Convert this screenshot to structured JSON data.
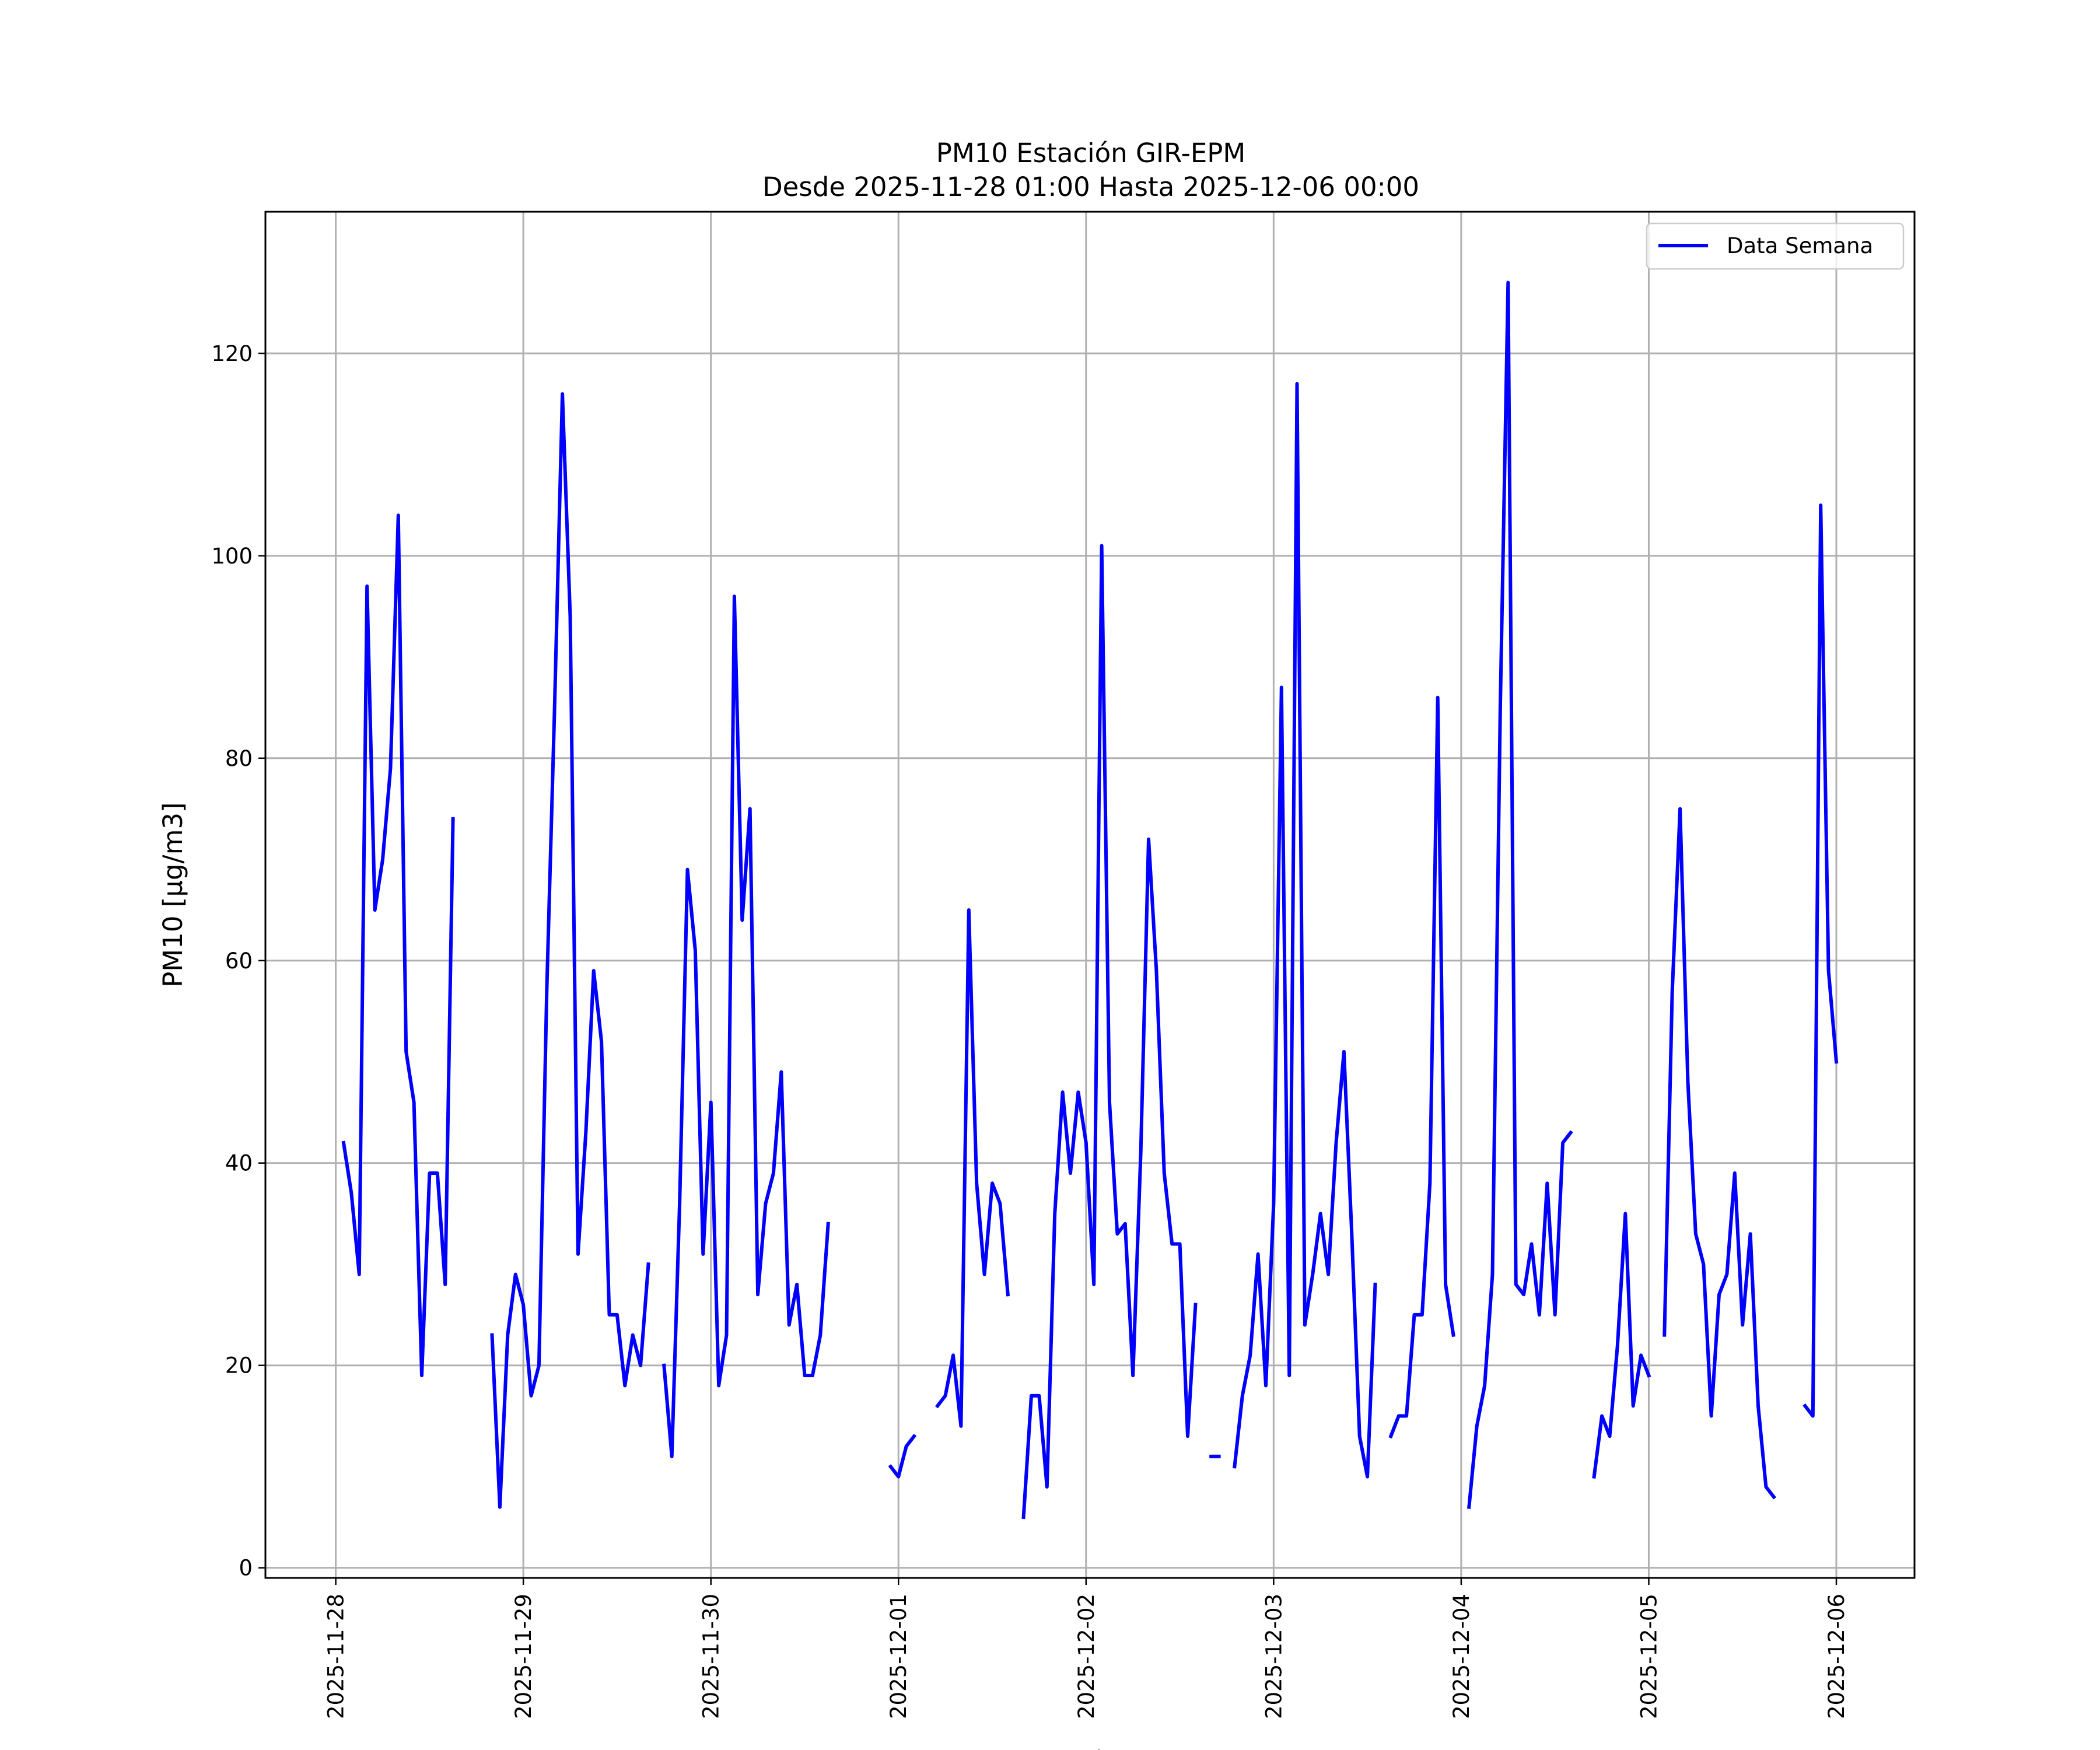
{
  "chart_data": {
    "type": "line",
    "title": "PM10 Estación GIR-EPM",
    "subtitle": "Desde 2025-11-28 01:00 Hasta 2025-12-06 00:00",
    "xlabel": "Fecha",
    "ylabel": "PM10 [μg/m3]",
    "ylim": [
      -1,
      134
    ],
    "xlim": [
      "2025-11-27 15:00",
      "2025-12-06 10:00"
    ],
    "yticks": [
      0,
      20,
      40,
      60,
      80,
      100,
      120
    ],
    "xticks": [
      "2025-11-28",
      "2025-11-29",
      "2025-11-30",
      "2025-12-01",
      "2025-12-02",
      "2025-12-03",
      "2025-12-04",
      "2025-12-05",
      "2025-12-06"
    ],
    "grid": true,
    "legend": "top-right",
    "colors": {
      "series": "#0000ff",
      "grid": "#b0b0b0"
    },
    "series": [
      {
        "name": "Data Semana",
        "segments": [
          [
            [
              "2025-11-28 01:00",
              42
            ],
            [
              "2025-11-28 02:00",
              37
            ],
            [
              "2025-11-28 03:00",
              29
            ],
            [
              "2025-11-28 04:00",
              97
            ],
            [
              "2025-11-28 05:00",
              65
            ],
            [
              "2025-11-28 06:00",
              70
            ],
            [
              "2025-11-28 07:00",
              79
            ],
            [
              "2025-11-28 08:00",
              104
            ],
            [
              "2025-11-28 09:00",
              51
            ],
            [
              "2025-11-28 10:00",
              46
            ],
            [
              "2025-11-28 11:00",
              19
            ],
            [
              "2025-11-28 12:00",
              39
            ],
            [
              "2025-11-28 13:00",
              39
            ],
            [
              "2025-11-28 14:00",
              28
            ],
            [
              "2025-11-28 15:00",
              74
            ]
          ],
          [
            [
              "2025-11-28 20:00",
              23
            ],
            [
              "2025-11-28 21:00",
              6
            ],
            [
              "2025-11-28 22:00",
              23
            ],
            [
              "2025-11-28 23:00",
              29
            ],
            [
              "2025-11-29 00:00",
              26
            ],
            [
              "2025-11-29 01:00",
              17
            ],
            [
              "2025-11-29 02:00",
              20
            ],
            [
              "2025-11-29 03:00",
              57
            ],
            [
              "2025-11-29 04:00",
              85
            ],
            [
              "2025-11-29 05:00",
              116
            ],
            [
              "2025-11-29 06:00",
              94
            ],
            [
              "2025-11-29 07:00",
              31
            ],
            [
              "2025-11-29 08:00",
              43
            ],
            [
              "2025-11-29 09:00",
              59
            ],
            [
              "2025-11-29 10:00",
              52
            ],
            [
              "2025-11-29 11:00",
              25
            ],
            [
              "2025-11-29 12:00",
              25
            ],
            [
              "2025-11-29 13:00",
              18
            ],
            [
              "2025-11-29 14:00",
              23
            ],
            [
              "2025-11-29 15:00",
              20
            ],
            [
              "2025-11-29 16:00",
              30
            ]
          ],
          [
            [
              "2025-11-29 18:00",
              20
            ],
            [
              "2025-11-29 19:00",
              11
            ],
            [
              "2025-11-29 20:00",
              36
            ],
            [
              "2025-11-29 21:00",
              69
            ],
            [
              "2025-11-29 22:00",
              61
            ],
            [
              "2025-11-29 23:00",
              31
            ],
            [
              "2025-11-30 00:00",
              46
            ],
            [
              "2025-11-30 01:00",
              18
            ],
            [
              "2025-11-30 02:00",
              23
            ],
            [
              "2025-11-30 03:00",
              96
            ],
            [
              "2025-11-30 04:00",
              64
            ],
            [
              "2025-11-30 05:00",
              75
            ],
            [
              "2025-11-30 06:00",
              27
            ],
            [
              "2025-11-30 07:00",
              36
            ],
            [
              "2025-11-30 08:00",
              39
            ],
            [
              "2025-11-30 09:00",
              49
            ],
            [
              "2025-11-30 10:00",
              24
            ],
            [
              "2025-11-30 11:00",
              28
            ],
            [
              "2025-11-30 12:00",
              19
            ],
            [
              "2025-11-30 13:00",
              19
            ],
            [
              "2025-11-30 14:00",
              23
            ],
            [
              "2025-11-30 15:00",
              34
            ]
          ],
          [
            [
              "2025-11-30 23:00",
              10
            ],
            [
              "2025-12-01 00:00",
              9
            ],
            [
              "2025-12-01 01:00",
              12
            ],
            [
              "2025-12-01 02:00",
              13
            ]
          ],
          [
            [
              "2025-12-01 05:00",
              16
            ],
            [
              "2025-12-01 06:00",
              17
            ],
            [
              "2025-12-01 07:00",
              21
            ],
            [
              "2025-12-01 08:00",
              14
            ],
            [
              "2025-12-01 09:00",
              65
            ],
            [
              "2025-12-01 10:00",
              38
            ],
            [
              "2025-12-01 11:00",
              29
            ],
            [
              "2025-12-01 12:00",
              38
            ],
            [
              "2025-12-01 13:00",
              36
            ],
            [
              "2025-12-01 14:00",
              27
            ]
          ],
          [
            [
              "2025-12-01 16:00",
              5
            ],
            [
              "2025-12-01 17:00",
              17
            ],
            [
              "2025-12-01 18:00",
              17
            ],
            [
              "2025-12-01 19:00",
              8
            ],
            [
              "2025-12-01 20:00",
              35
            ],
            [
              "2025-12-01 21:00",
              47
            ],
            [
              "2025-12-01 22:00",
              39
            ],
            [
              "2025-12-01 23:00",
              47
            ],
            [
              "2025-12-02 00:00",
              42
            ],
            [
              "2025-12-02 01:00",
              28
            ],
            [
              "2025-12-02 02:00",
              101
            ],
            [
              "2025-12-02 03:00",
              46
            ],
            [
              "2025-12-02 04:00",
              33
            ],
            [
              "2025-12-02 05:00",
              34
            ],
            [
              "2025-12-02 06:00",
              19
            ],
            [
              "2025-12-02 07:00",
              41
            ],
            [
              "2025-12-02 08:00",
              72
            ],
            [
              "2025-12-02 09:00",
              59
            ],
            [
              "2025-12-02 10:00",
              39
            ],
            [
              "2025-12-02 11:00",
              32
            ],
            [
              "2025-12-02 12:00",
              32
            ],
            [
              "2025-12-02 13:00",
              13
            ],
            [
              "2025-12-02 14:00",
              26
            ]
          ],
          [
            [
              "2025-12-02 16:00",
              11
            ],
            [
              "2025-12-02 17:00",
              11
            ]
          ],
          [
            [
              "2025-12-02 19:00",
              10
            ],
            [
              "2025-12-02 20:00",
              17
            ],
            [
              "2025-12-02 21:00",
              21
            ],
            [
              "2025-12-02 22:00",
              31
            ],
            [
              "2025-12-02 23:00",
              18
            ],
            [
              "2025-12-03 00:00",
              36
            ],
            [
              "2025-12-03 01:00",
              87
            ],
            [
              "2025-12-03 02:00",
              19
            ],
            [
              "2025-12-03 03:00",
              117
            ],
            [
              "2025-12-03 04:00",
              24
            ],
            [
              "2025-12-03 05:00",
              29
            ],
            [
              "2025-12-03 06:00",
              35
            ],
            [
              "2025-12-03 07:00",
              29
            ],
            [
              "2025-12-03 08:00",
              42
            ],
            [
              "2025-12-03 09:00",
              51
            ],
            [
              "2025-12-03 10:00",
              33
            ],
            [
              "2025-12-03 11:00",
              13
            ],
            [
              "2025-12-03 12:00",
              9
            ],
            [
              "2025-12-03 13:00",
              28
            ]
          ],
          [
            [
              "2025-12-03 15:00",
              13
            ],
            [
              "2025-12-03 16:00",
              15
            ],
            [
              "2025-12-03 17:00",
              15
            ],
            [
              "2025-12-03 18:00",
              25
            ],
            [
              "2025-12-03 19:00",
              25
            ],
            [
              "2025-12-03 20:00",
              38
            ],
            [
              "2025-12-03 21:00",
              86
            ],
            [
              "2025-12-03 22:00",
              28
            ],
            [
              "2025-12-03 23:00",
              23
            ]
          ],
          [
            [
              "2025-12-04 01:00",
              6
            ],
            [
              "2025-12-04 02:00",
              14
            ],
            [
              "2025-12-04 03:00",
              18
            ],
            [
              "2025-12-04 04:00",
              29
            ],
            [
              "2025-12-04 05:00",
              85
            ],
            [
              "2025-12-04 06:00",
              127
            ],
            [
              "2025-12-04 07:00",
              28
            ],
            [
              "2025-12-04 08:00",
              27
            ],
            [
              "2025-12-04 09:00",
              32
            ],
            [
              "2025-12-04 10:00",
              25
            ],
            [
              "2025-12-04 11:00",
              38
            ],
            [
              "2025-12-04 12:00",
              25
            ],
            [
              "2025-12-04 13:00",
              42
            ],
            [
              "2025-12-04 14:00",
              43
            ]
          ],
          [
            [
              "2025-12-04 17:00",
              9
            ],
            [
              "2025-12-04 18:00",
              15
            ],
            [
              "2025-12-04 19:00",
              13
            ],
            [
              "2025-12-04 20:00",
              22
            ],
            [
              "2025-12-04 21:00",
              35
            ],
            [
              "2025-12-04 22:00",
              16
            ],
            [
              "2025-12-04 23:00",
              21
            ],
            [
              "2025-12-05 00:00",
              19
            ]
          ],
          [
            [
              "2025-12-05 02:00",
              23
            ],
            [
              "2025-12-05 03:00",
              57
            ],
            [
              "2025-12-05 04:00",
              75
            ],
            [
              "2025-12-05 05:00",
              48
            ],
            [
              "2025-12-05 06:00",
              33
            ],
            [
              "2025-12-05 07:00",
              30
            ],
            [
              "2025-12-05 08:00",
              15
            ],
            [
              "2025-12-05 09:00",
              27
            ],
            [
              "2025-12-05 10:00",
              29
            ],
            [
              "2025-12-05 11:00",
              39
            ],
            [
              "2025-12-05 12:00",
              24
            ],
            [
              "2025-12-05 13:00",
              33
            ],
            [
              "2025-12-05 14:00",
              16
            ],
            [
              "2025-12-05 15:00",
              8
            ],
            [
              "2025-12-05 16:00",
              7
            ]
          ],
          [
            [
              "2025-12-05 20:00",
              16
            ],
            [
              "2025-12-05 21:00",
              15
            ],
            [
              "2025-12-05 22:00",
              105
            ],
            [
              "2025-12-05 23:00",
              59
            ],
            [
              "2025-12-06 00:00",
              50
            ]
          ]
        ]
      }
    ]
  }
}
